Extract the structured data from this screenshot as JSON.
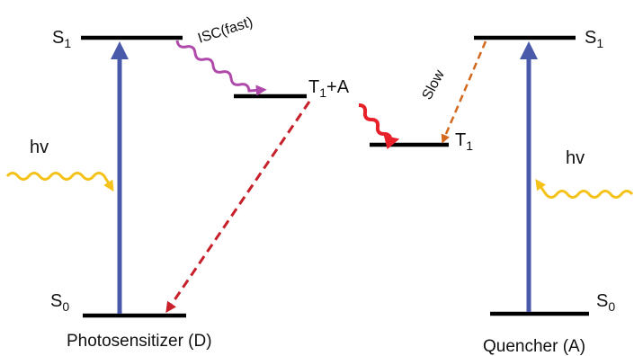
{
  "levels": {
    "d_s1": {
      "name": "S",
      "sub": "1"
    },
    "d_s0": {
      "name": "S",
      "sub": "0"
    },
    "d_t1": {
      "name": "T",
      "sub": "1",
      "suffix": "+A"
    },
    "a_t1": {
      "name": "T",
      "sub": "1"
    },
    "a_s1": {
      "name": "S",
      "sub": "1"
    },
    "a_s0": {
      "name": "S",
      "sub": "0"
    }
  },
  "labels": {
    "hv_left": "hv",
    "hv_right": "hv",
    "isc": "ISC(fast)",
    "slow": "Slow",
    "donor": "Photosensitizer (D)",
    "acceptor": "Quencher (A)"
  },
  "colors": {
    "level_line": "#000000",
    "excitation_arrow": "#4a5aaa",
    "photon_wave": "#f5c21a",
    "isc_wave": "#b04aaa",
    "energy_transfer_wave": "#e8202a",
    "slow_arrow": "#d2691e",
    "donor_decay_arrow": "#c8202a"
  }
}
